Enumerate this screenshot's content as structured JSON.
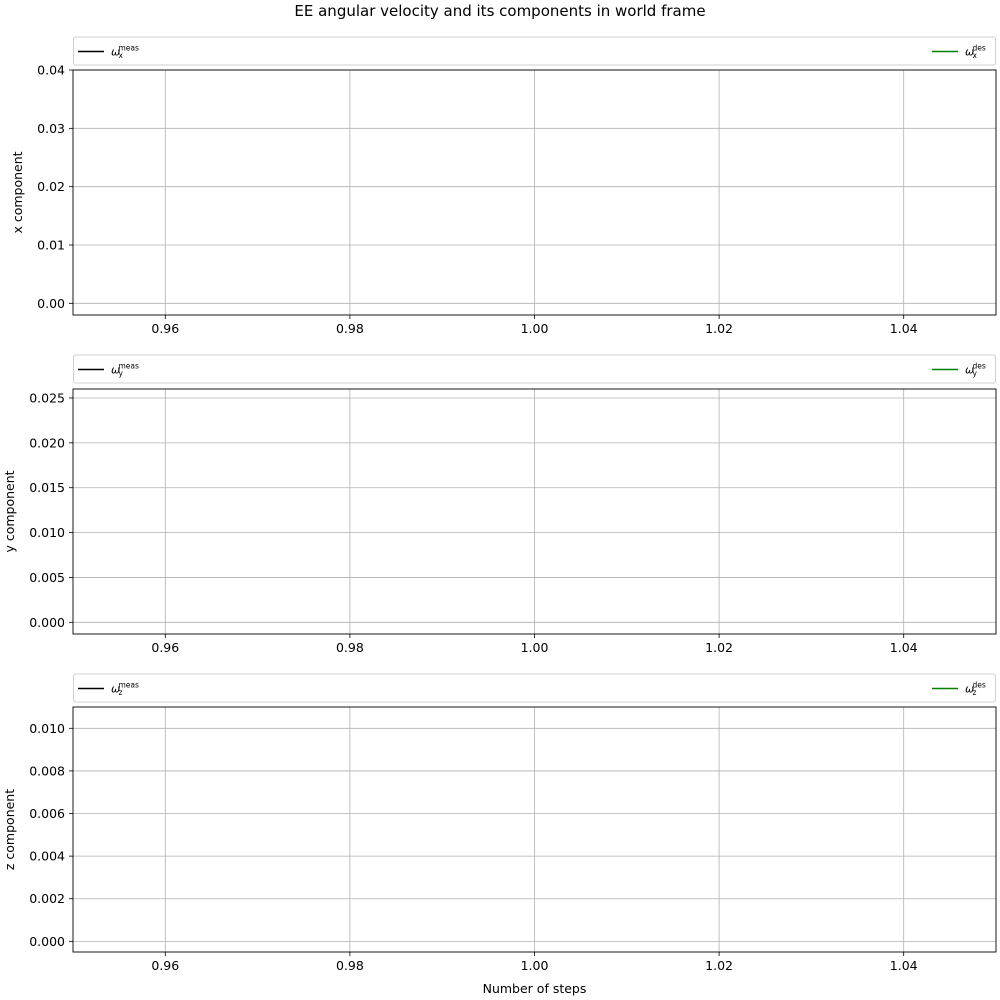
{
  "figure": {
    "title": "EE angular velocity and its components in world frame",
    "xlabel": "Number of steps"
  },
  "colors": {
    "measured": "#000000",
    "desired": "#008000",
    "grid": "#b0b0b0",
    "frame": "#000000"
  },
  "chart_data": [
    {
      "type": "line",
      "title": "",
      "ylabel": "x component",
      "xlabel": "",
      "xlim": [
        0.95,
        1.05
      ],
      "ylim": [
        -0.002,
        0.04
      ],
      "xticks": [
        "0.96",
        "0.98",
        "1.00",
        "1.02",
        "1.04"
      ],
      "xtick_values": [
        0.96,
        0.98,
        1.0,
        1.02,
        1.04
      ],
      "yticks": [
        "0.00",
        "0.01",
        "0.02",
        "0.03",
        "0.04"
      ],
      "ytick_values": [
        0.0,
        0.01,
        0.02,
        0.03,
        0.04
      ],
      "grid": true,
      "legend_placement": "top, outside, full width",
      "series": [
        {
          "key": "meas",
          "legend": {
            "base": "ω",
            "sub": "x",
            "sup": "meas"
          },
          "color": "#000000",
          "x": [],
          "y": []
        },
        {
          "key": "des",
          "legend": {
            "base": "ω",
            "sub": "x",
            "sup": "des"
          },
          "color": "#008000",
          "x": [],
          "y": []
        }
      ]
    },
    {
      "type": "line",
      "title": "",
      "ylabel": "y component",
      "xlabel": "",
      "xlim": [
        0.95,
        1.05
      ],
      "ylim": [
        -0.0013,
        0.026
      ],
      "xticks": [
        "0.96",
        "0.98",
        "1.00",
        "1.02",
        "1.04"
      ],
      "xtick_values": [
        0.96,
        0.98,
        1.0,
        1.02,
        1.04
      ],
      "yticks": [
        "0.000",
        "0.005",
        "0.010",
        "0.015",
        "0.020",
        "0.025"
      ],
      "ytick_values": [
        0.0,
        0.005,
        0.01,
        0.015,
        0.02,
        0.025
      ],
      "grid": true,
      "legend_placement": "top, outside, full width",
      "series": [
        {
          "key": "meas",
          "legend": {
            "base": "ω",
            "sub": "y",
            "sup": "meas"
          },
          "color": "#000000",
          "x": [],
          "y": []
        },
        {
          "key": "des",
          "legend": {
            "base": "ω",
            "sub": "y",
            "sup": "des"
          },
          "color": "#008000",
          "x": [],
          "y": []
        }
      ]
    },
    {
      "type": "line",
      "title": "",
      "ylabel": "z component",
      "xlabel": "Number of steps",
      "xlim": [
        0.95,
        1.05
      ],
      "ylim": [
        -0.0005,
        0.011
      ],
      "xticks": [
        "0.96",
        "0.98",
        "1.00",
        "1.02",
        "1.04"
      ],
      "xtick_values": [
        0.96,
        0.98,
        1.0,
        1.02,
        1.04
      ],
      "yticks": [
        "0.000",
        "0.002",
        "0.004",
        "0.006",
        "0.008",
        "0.010"
      ],
      "ytick_values": [
        0.0,
        0.002,
        0.004,
        0.006,
        0.008,
        0.01
      ],
      "grid": true,
      "legend_placement": "top, outside, full width",
      "series": [
        {
          "key": "meas",
          "legend": {
            "base": "ω",
            "sub": "z",
            "sup": "meas"
          },
          "color": "#000000",
          "x": [],
          "y": []
        },
        {
          "key": "des",
          "legend": {
            "base": "ω",
            "sub": "z",
            "sup": "des"
          },
          "color": "#008000",
          "x": [],
          "y": []
        }
      ]
    }
  ]
}
